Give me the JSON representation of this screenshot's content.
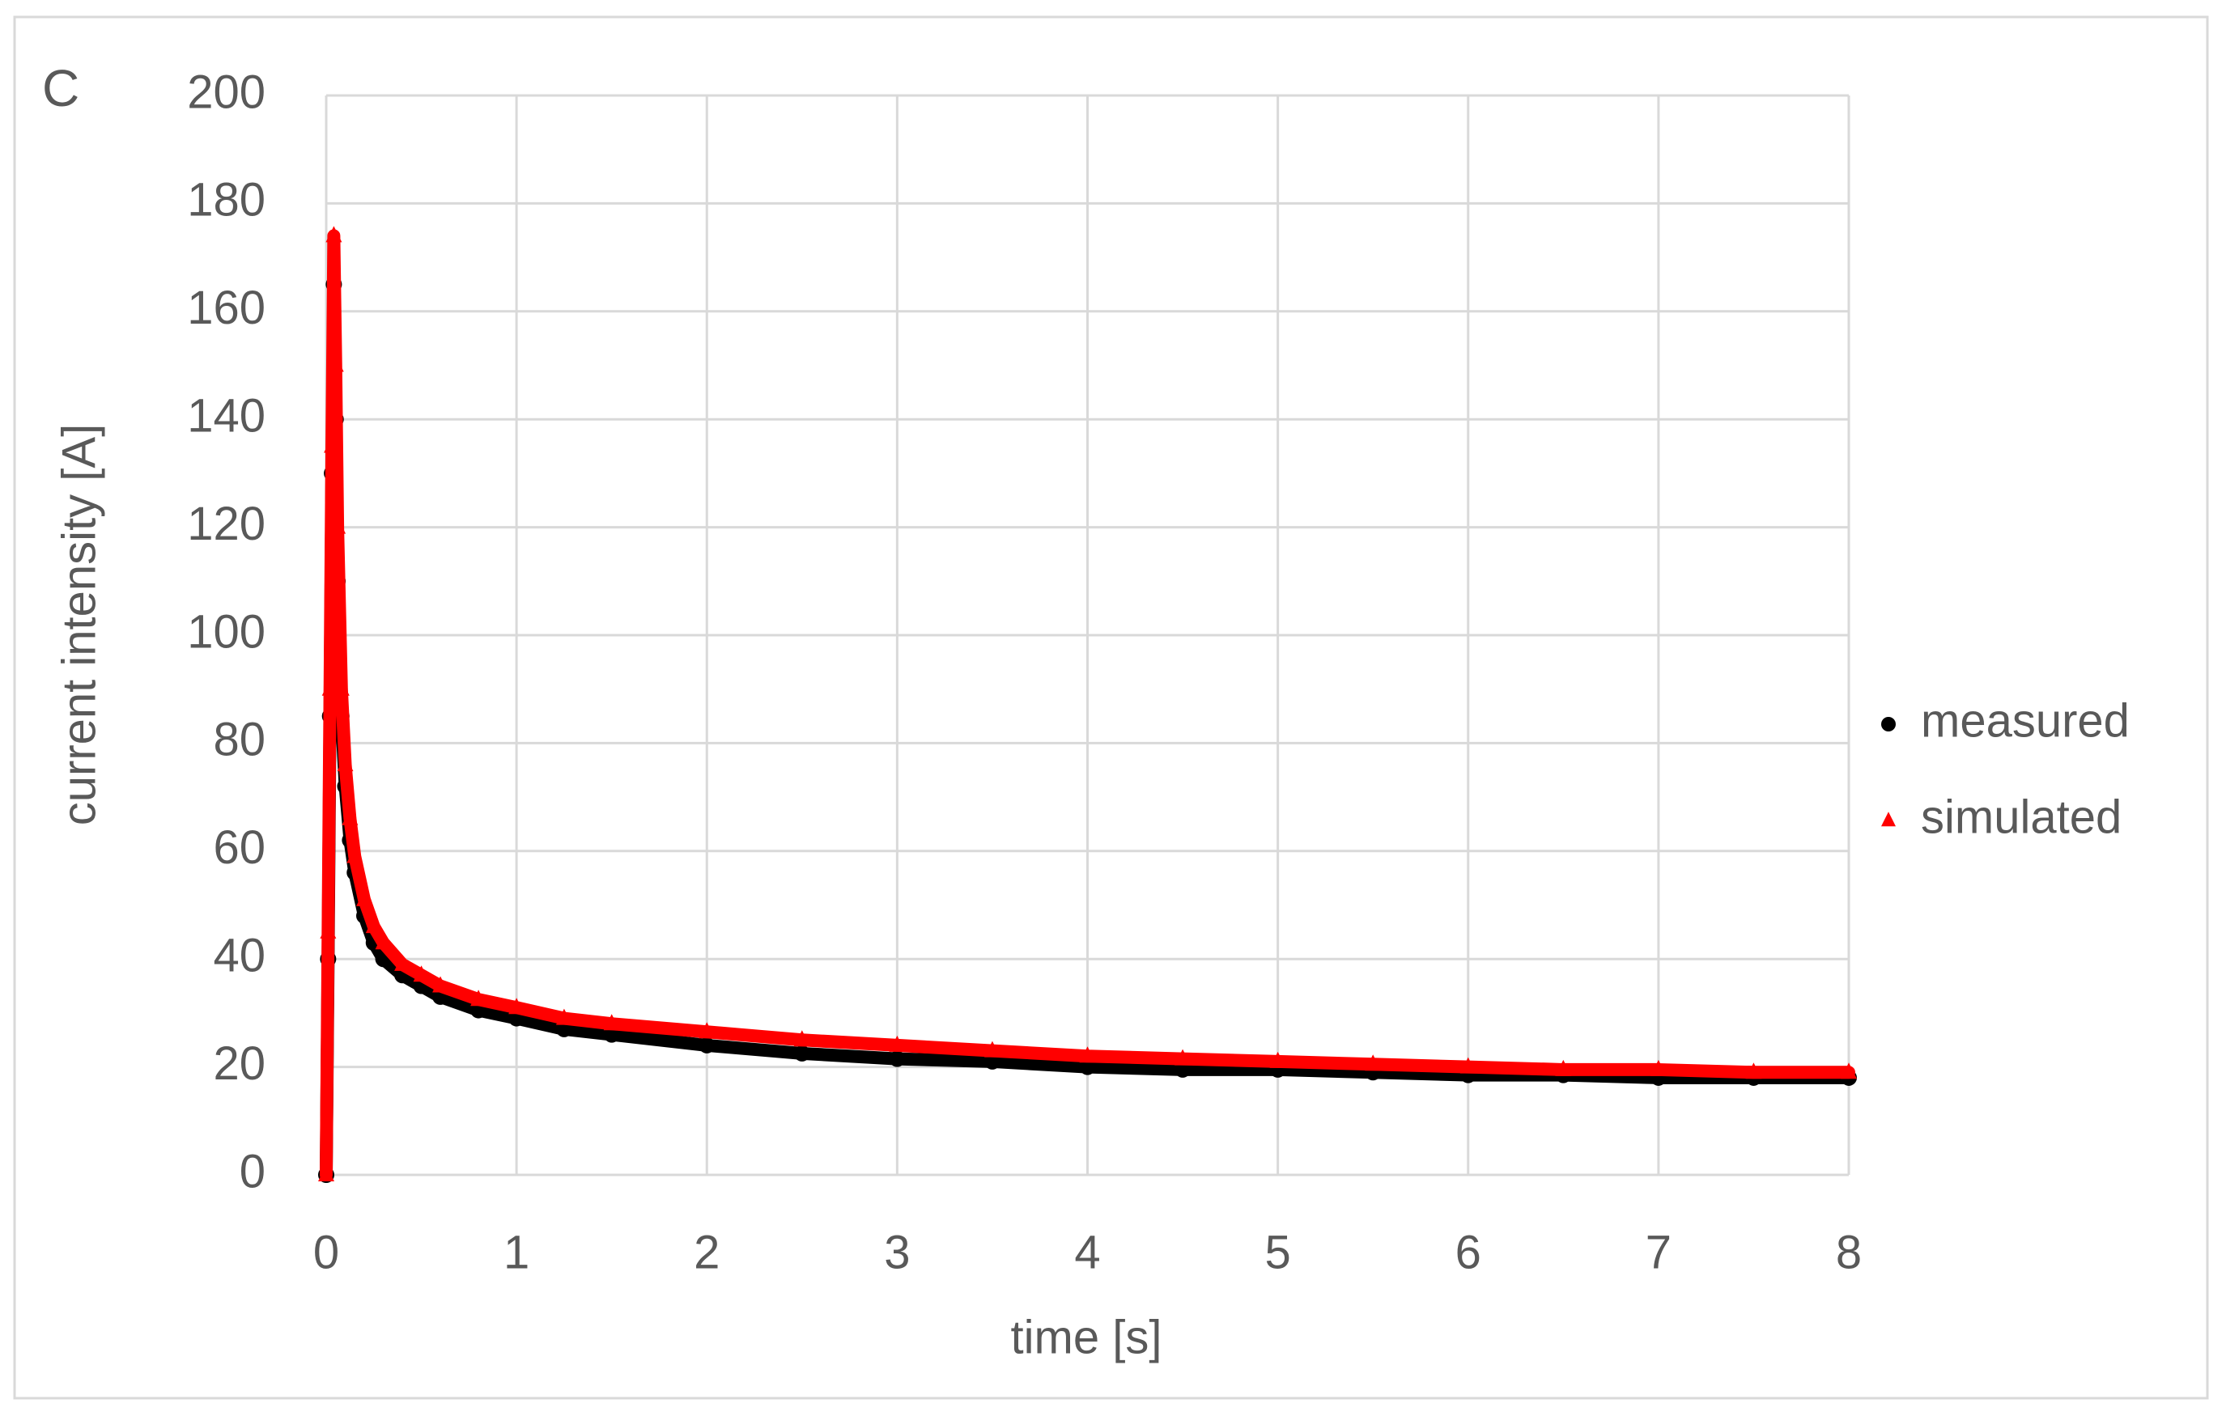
{
  "chart_data": {
    "type": "scatter",
    "panel_label": "C",
    "xlabel": "time [s]",
    "ylabel": "current intensity [A]",
    "x": [
      0,
      0.01,
      0.02,
      0.03,
      0.04,
      0.05,
      0.06,
      0.08,
      0.1,
      0.125,
      0.15,
      0.2,
      0.25,
      0.3,
      0.4,
      0.5,
      0.6,
      0.8,
      1.0,
      1.25,
      1.5,
      2,
      2.5,
      3,
      3.5,
      4,
      4.5,
      5,
      5.5,
      6,
      6.5,
      7,
      7.5,
      8
    ],
    "series": [
      {
        "name": "measured",
        "color": "#000000",
        "marker": "circle",
        "values": [
          0,
          40,
          85,
          130,
          165,
          140,
          110,
          85,
          72,
          62,
          56,
          48,
          43,
          40,
          37,
          35,
          33,
          30.5,
          29,
          27,
          26,
          24,
          22.5,
          21.5,
          21,
          20,
          19.5,
          19.5,
          19,
          18.5,
          18.5,
          18,
          18,
          18
        ]
      },
      {
        "name": "simulated",
        "color": "#ff0000",
        "marker": "triangle",
        "values": [
          0,
          45,
          90,
          135,
          174,
          150,
          120,
          90,
          76,
          66,
          59,
          51,
          46,
          43,
          39,
          37,
          35,
          32.5,
          31,
          29,
          28,
          26.5,
          25,
          24,
          23,
          22,
          21.5,
          21,
          20.5,
          20,
          19.5,
          19.5,
          19,
          19
        ]
      }
    ],
    "xlim": [
      0,
      8
    ],
    "xticks": [
      0,
      1,
      2,
      3,
      4,
      5,
      6,
      7,
      8
    ],
    "ylim": [
      0,
      200
    ],
    "yticks": [
      0,
      20,
      40,
      60,
      80,
      100,
      120,
      140,
      160,
      180,
      200
    ],
    "grid": true,
    "legend": "right"
  }
}
